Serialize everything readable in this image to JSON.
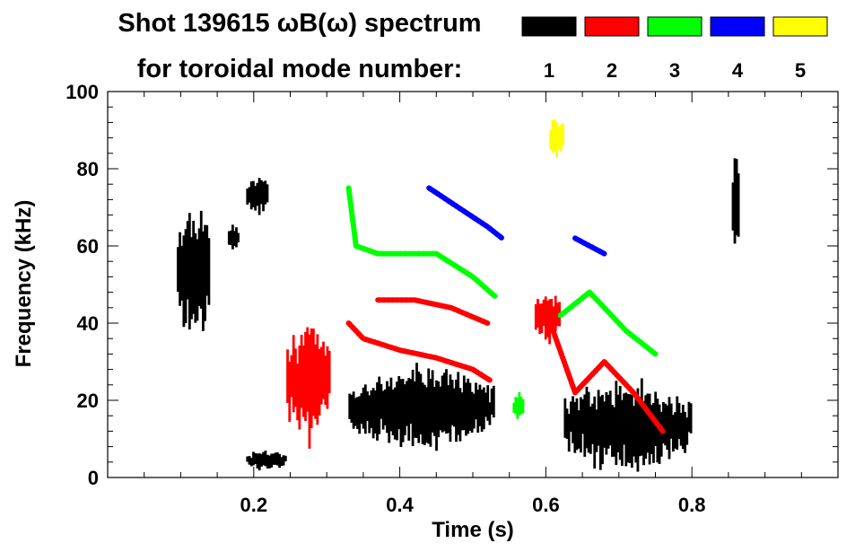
{
  "chart_data": {
    "type": "heatmap",
    "title_line1": "Shot 139615 ωB(ω) spectrum",
    "title_line2": "for toroidal mode number:",
    "xlabel": "Time (s)",
    "ylabel": "Frequency (kHz)",
    "xlim": [
      0.0,
      1.0
    ],
    "ylim": [
      0,
      100
    ],
    "x_ticks": [
      0.2,
      0.4,
      0.6,
      0.8
    ],
    "x_tick_labels": [
      "0.2",
      "0.4",
      "0.6",
      "0.8"
    ],
    "y_ticks": [
      0,
      20,
      40,
      60,
      80,
      100
    ],
    "y_tick_labels": [
      "0",
      "20",
      "40",
      "60",
      "80",
      "100"
    ],
    "legend": {
      "entries": [
        {
          "label": "1",
          "color": "#000000"
        },
        {
          "label": "2",
          "color": "#ff0000"
        },
        {
          "label": "3",
          "color": "#00ff00"
        },
        {
          "label": "4",
          "color": "#0000ff"
        },
        {
          "label": "5",
          "color": "#ffff00"
        }
      ]
    },
    "features": [
      {
        "mode": 1,
        "kind": "blob",
        "t0": 0.095,
        "t1": 0.14,
        "f0": 35,
        "f1": 72
      },
      {
        "mode": 1,
        "kind": "blob",
        "t0": 0.165,
        "t1": 0.18,
        "f0": 59,
        "f1": 66
      },
      {
        "mode": 1,
        "kind": "blob",
        "t0": 0.19,
        "t1": 0.245,
        "f0": 2,
        "f1": 7
      },
      {
        "mode": 1,
        "kind": "blob",
        "t0": 0.19,
        "t1": 0.22,
        "f0": 68,
        "f1": 78
      },
      {
        "mode": 1,
        "kind": "blob",
        "t0": 0.33,
        "t1": 0.53,
        "f0": 8,
        "f1": 28
      },
      {
        "mode": 1,
        "kind": "blob",
        "t0": 0.625,
        "t1": 0.8,
        "f0": 2,
        "f1": 25
      },
      {
        "mode": 1,
        "kind": "blob",
        "t0": 0.855,
        "t1": 0.865,
        "f0": 60,
        "f1": 85
      },
      {
        "mode": 2,
        "kind": "blob",
        "t0": 0.245,
        "t1": 0.305,
        "f0": 10,
        "f1": 40
      },
      {
        "mode": 2,
        "kind": "blob",
        "t0": 0.585,
        "t1": 0.62,
        "f0": 35,
        "f1": 48
      },
      {
        "mode": 2,
        "kind": "line",
        "t": [
          0.33,
          0.35,
          0.4,
          0.45,
          0.5,
          0.525
        ],
        "f": [
          40,
          36,
          33,
          31,
          28,
          25
        ]
      },
      {
        "mode": 2,
        "kind": "line",
        "t": [
          0.37,
          0.42,
          0.47,
          0.52
        ],
        "f": [
          46,
          46,
          44,
          40
        ]
      },
      {
        "mode": 2,
        "kind": "line",
        "t": [
          0.61,
          0.64,
          0.68,
          0.72,
          0.76
        ],
        "f": [
          38,
          22,
          30,
          22,
          12
        ]
      },
      {
        "mode": 3,
        "kind": "line",
        "t": [
          0.33,
          0.34,
          0.37,
          0.4,
          0.45,
          0.5,
          0.53
        ],
        "f": [
          75,
          60,
          58,
          58,
          58,
          52,
          47
        ]
      },
      {
        "mode": 3,
        "kind": "line",
        "t": [
          0.62,
          0.66,
          0.71,
          0.75
        ],
        "f": [
          42,
          48,
          38,
          32
        ]
      },
      {
        "mode": 3,
        "kind": "blob",
        "t0": 0.555,
        "t1": 0.57,
        "f0": 15,
        "f1": 22
      },
      {
        "mode": 4,
        "kind": "line",
        "t": [
          0.44,
          0.48,
          0.52,
          0.54
        ],
        "f": [
          75,
          70,
          65,
          62
        ]
      },
      {
        "mode": 4,
        "kind": "line",
        "t": [
          0.64,
          0.66,
          0.68
        ],
        "f": [
          62,
          60,
          58
        ]
      },
      {
        "mode": 5,
        "kind": "blob",
        "t0": 0.605,
        "t1": 0.625,
        "f0": 83,
        "f1": 94
      }
    ]
  }
}
